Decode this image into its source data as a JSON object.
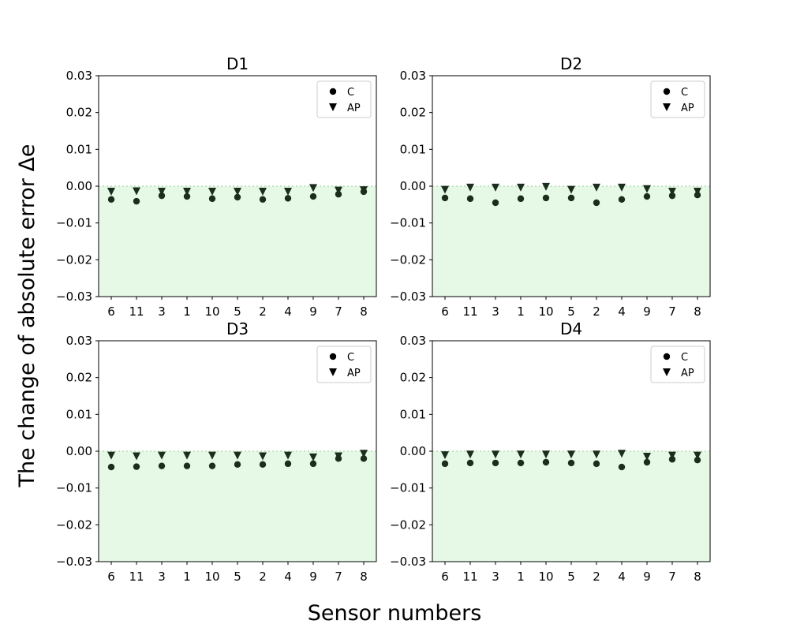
{
  "figure": {
    "ylabel": "The change of absolute error Δe",
    "xlabel": "Sensor numbers"
  },
  "colors": {
    "marker": "#1b2e1b",
    "fill": "#e6f9e6",
    "baseline": "#b5deb5",
    "axis": "#000000"
  },
  "chart_data": [
    {
      "type": "scatter",
      "title": "D1",
      "categories": [
        "6",
        "11",
        "3",
        "1",
        "10",
        "5",
        "2",
        "4",
        "9",
        "7",
        "8"
      ],
      "ylim": [
        -0.03,
        0.03
      ],
      "yticks": [
        0.03,
        0.02,
        0.01,
        0.0,
        -0.01,
        -0.02,
        -0.03
      ],
      "ytick_labels": [
        "0.03",
        "0.02",
        "0.01",
        "0.00",
        "−0.01",
        "−0.02",
        "−0.03"
      ],
      "legend": "top-right",
      "series": [
        {
          "name": "C",
          "marker": "circle",
          "values": [
            -0.0036,
            -0.0041,
            -0.0026,
            -0.0028,
            -0.0034,
            -0.003,
            -0.0036,
            -0.0033,
            -0.0028,
            -0.0022,
            -0.0015
          ]
        },
        {
          "name": "AP",
          "marker": "triangle-down",
          "values": [
            -0.0015,
            -0.0014,
            -0.0015,
            -0.0015,
            -0.0015,
            -0.0015,
            -0.0015,
            -0.0015,
            -0.0005,
            -0.0012,
            -0.0011
          ]
        }
      ]
    },
    {
      "type": "scatter",
      "title": "D2",
      "categories": [
        "6",
        "11",
        "3",
        "1",
        "10",
        "5",
        "2",
        "4",
        "9",
        "7",
        "8"
      ],
      "ylim": [
        -0.03,
        0.03
      ],
      "yticks": [
        0.03,
        0.02,
        0.01,
        0.0,
        -0.01,
        -0.02,
        -0.03
      ],
      "ytick_labels": [
        "0.03",
        "0.02",
        "0.01",
        "0.00",
        "−0.01",
        "−0.02",
        "−0.03"
      ],
      "legend": "top-right",
      "series": [
        {
          "name": "C",
          "marker": "circle",
          "values": [
            -0.0032,
            -0.0034,
            -0.0045,
            -0.0034,
            -0.0032,
            -0.0032,
            -0.0045,
            -0.0036,
            -0.0028,
            -0.0026,
            -0.0024
          ]
        },
        {
          "name": "AP",
          "marker": "triangle-down",
          "values": [
            -0.001,
            -0.0004,
            -0.0004,
            -0.0004,
            -0.0002,
            -0.001,
            -0.0004,
            -0.0004,
            -0.0008,
            -0.0015,
            -0.0015
          ]
        }
      ]
    },
    {
      "type": "scatter",
      "title": "D3",
      "categories": [
        "6",
        "11",
        "3",
        "1",
        "10",
        "5",
        "2",
        "4",
        "9",
        "7",
        "8"
      ],
      "ylim": [
        -0.03,
        0.03
      ],
      "yticks": [
        0.03,
        0.02,
        0.01,
        0.0,
        -0.01,
        -0.02,
        -0.03
      ],
      "ytick_labels": [
        "0.03",
        "0.02",
        "0.01",
        "0.00",
        "−0.01",
        "−0.02",
        "−0.03"
      ],
      "legend": "top-right",
      "series": [
        {
          "name": "C",
          "marker": "circle",
          "values": [
            -0.0043,
            -0.0042,
            -0.004,
            -0.004,
            -0.004,
            -0.0036,
            -0.0036,
            -0.0034,
            -0.0034,
            -0.002,
            -0.002
          ]
        },
        {
          "name": "AP",
          "marker": "triangle-down",
          "values": [
            -0.0012,
            -0.0014,
            -0.0012,
            -0.0012,
            -0.0012,
            -0.0012,
            -0.0014,
            -0.0012,
            -0.0017,
            -0.0014,
            -0.0007
          ]
        }
      ]
    },
    {
      "type": "scatter",
      "title": "D4",
      "categories": [
        "6",
        "11",
        "3",
        "1",
        "10",
        "5",
        "2",
        "4",
        "9",
        "7",
        "8"
      ],
      "ylim": [
        -0.03,
        0.03
      ],
      "yticks": [
        0.03,
        0.02,
        0.01,
        0.0,
        -0.01,
        -0.02,
        -0.03
      ],
      "ytick_labels": [
        "0.03",
        "0.02",
        "0.01",
        "0.00",
        "−0.01",
        "−0.02",
        "−0.03"
      ],
      "legend": "top-right",
      "series": [
        {
          "name": "C",
          "marker": "circle",
          "values": [
            -0.0034,
            -0.0032,
            -0.0032,
            -0.0032,
            -0.003,
            -0.0032,
            -0.0034,
            -0.0043,
            -0.003,
            -0.0022,
            -0.0024
          ]
        },
        {
          "name": "AP",
          "marker": "triangle-down",
          "values": [
            -0.0011,
            -0.0009,
            -0.0009,
            -0.0009,
            -0.0009,
            -0.0009,
            -0.0009,
            -0.0007,
            -0.0015,
            -0.0012,
            -0.0012
          ]
        }
      ]
    }
  ]
}
